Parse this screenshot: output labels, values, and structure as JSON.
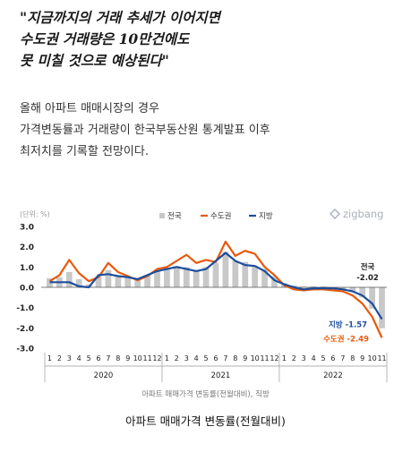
{
  "article": {
    "quote_lines": [
      "\"지금까지의 거래 추세가 이어지면",
      "수도권 거래량은 10만건에도",
      "못 미칠 것으로 예상된다\""
    ],
    "body_lines": [
      "올해 아파트 매매시장의 경우",
      "가격변동률과 거래량이 한국부동산원 통계발표 이후",
      "최저치를 기록할 전망이다."
    ],
    "brand": "zigbang",
    "caption": "아파트 매매가격 변동률(전월대비)"
  },
  "chart_data": {
    "type": "bar+line",
    "unit_label": "(단위: %)",
    "ylim": [
      -3.0,
      3.0
    ],
    "yticks": [
      "3.0",
      "2.0",
      "1.0",
      "0.0",
      "-1.0",
      "-2.0",
      "-3.0"
    ],
    "ytick_values": [
      3,
      2,
      1,
      0,
      -1,
      -2,
      -3
    ],
    "categories": [
      "1",
      "2",
      "3",
      "4",
      "5",
      "6",
      "7",
      "8",
      "9",
      "10",
      "11",
      "12",
      "1",
      "2",
      "3",
      "4",
      "5",
      "6",
      "7",
      "8",
      "9",
      "10",
      "11",
      "12",
      "1",
      "2",
      "3",
      "4",
      "5",
      "6",
      "7",
      "8",
      "9",
      "10",
      "11"
    ],
    "year_labels": [
      "2020",
      "2021",
      "2022"
    ],
    "series": [
      {
        "name": "전국",
        "kind": "bar",
        "color": "#c8c8c8",
        "values": [
          0.45,
          0.5,
          0.75,
          0.4,
          0.15,
          0.55,
          0.85,
          0.6,
          0.5,
          0.4,
          0.6,
          0.85,
          0.95,
          1.05,
          1.0,
          0.85,
          1.0,
          1.2,
          1.75,
          1.3,
          1.25,
          1.05,
          0.9,
          0.55,
          0.2,
          0.1,
          0.05,
          0.05,
          0.05,
          0.0,
          -0.1,
          -0.2,
          -0.5,
          -1.05,
          -2.02
        ]
      },
      {
        "name": "수도권",
        "kind": "line",
        "color": "#e8590c",
        "values": [
          0.3,
          0.6,
          1.35,
          0.7,
          0.3,
          0.5,
          1.2,
          0.75,
          0.55,
          0.35,
          0.55,
          0.9,
          1.0,
          1.3,
          1.6,
          1.2,
          1.35,
          1.25,
          2.25,
          1.55,
          1.8,
          1.65,
          1.0,
          0.6,
          0.1,
          -0.1,
          -0.15,
          -0.1,
          -0.1,
          -0.15,
          -0.2,
          -0.4,
          -0.8,
          -1.45,
          -2.49
        ]
      },
      {
        "name": "지방",
        "kind": "line",
        "color": "#1d4e9c",
        "values": [
          0.25,
          0.25,
          0.25,
          0.05,
          0.0,
          0.6,
          0.65,
          0.55,
          0.5,
          0.4,
          0.6,
          0.8,
          0.9,
          1.0,
          0.9,
          0.8,
          0.9,
          1.3,
          1.7,
          1.3,
          1.1,
          1.05,
          0.8,
          0.35,
          0.15,
          0.0,
          -0.1,
          -0.05,
          -0.05,
          -0.05,
          -0.1,
          -0.2,
          -0.4,
          -0.8,
          -1.57
        ]
      }
    ],
    "annotations": [
      {
        "series": "전국",
        "label": "전국",
        "value_text": "-2.02",
        "color": "#222222"
      },
      {
        "series": "지방",
        "label": "지방",
        "value_text": "-1.57",
        "color": "#1d4e9c"
      },
      {
        "series": "수도권",
        "label": "수도권",
        "value_text": "-2.49",
        "color": "#e8590c"
      }
    ],
    "legend_position": "top",
    "source_note": "아파트 매매가격 변동률(전월대비), 직방",
    "grid": false
  }
}
